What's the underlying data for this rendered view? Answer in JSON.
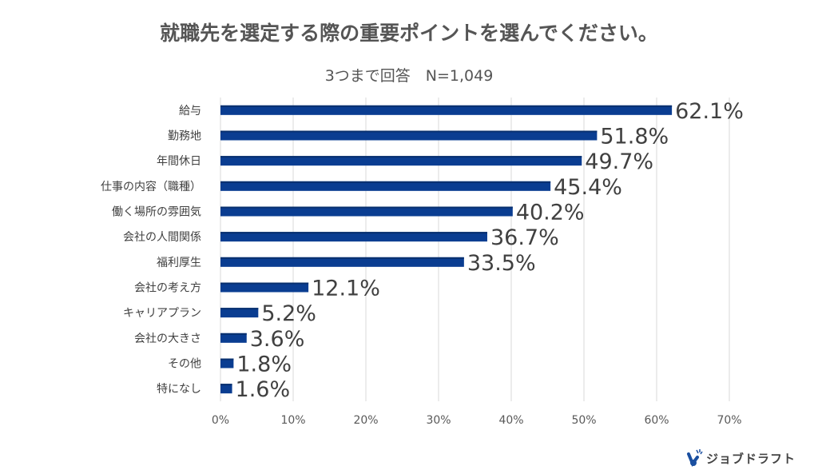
{
  "chart_data": {
    "type": "bar",
    "orientation": "horizontal",
    "title": "就職先を選定する際の重要ポイントを選んでください。",
    "subtitle": "3つまで回答　N=1,049",
    "categories": [
      "給与",
      "勤務地",
      "年間休日",
      "仕事の内容（職種）",
      "働く場所の雰囲気",
      "会社の人間関係",
      "福利厚生",
      "会社の考え方",
      "キャリアプラン",
      "会社の大きさ",
      "その他",
      "特になし"
    ],
    "values": [
      62.1,
      51.8,
      49.7,
      45.4,
      40.2,
      36.7,
      33.5,
      12.1,
      5.2,
      3.6,
      1.8,
      1.6
    ],
    "data_labels": [
      "62.1%",
      "51.8%",
      "49.7%",
      "45.4%",
      "40.2%",
      "36.7%",
      "33.5%",
      "12.1%",
      "5.2%",
      "3.6%",
      "1.8%",
      "1.6%"
    ],
    "xlim": [
      0,
      70
    ],
    "x_ticks": [
      "0%",
      "10%",
      "20%",
      "30%",
      "40%",
      "50%",
      "60%",
      "70%"
    ],
    "grid": "vertical",
    "bar_color": "#0A3D91"
  },
  "logo": {
    "text": "ジョブドラフト",
    "color": "#1A4FA0"
  }
}
